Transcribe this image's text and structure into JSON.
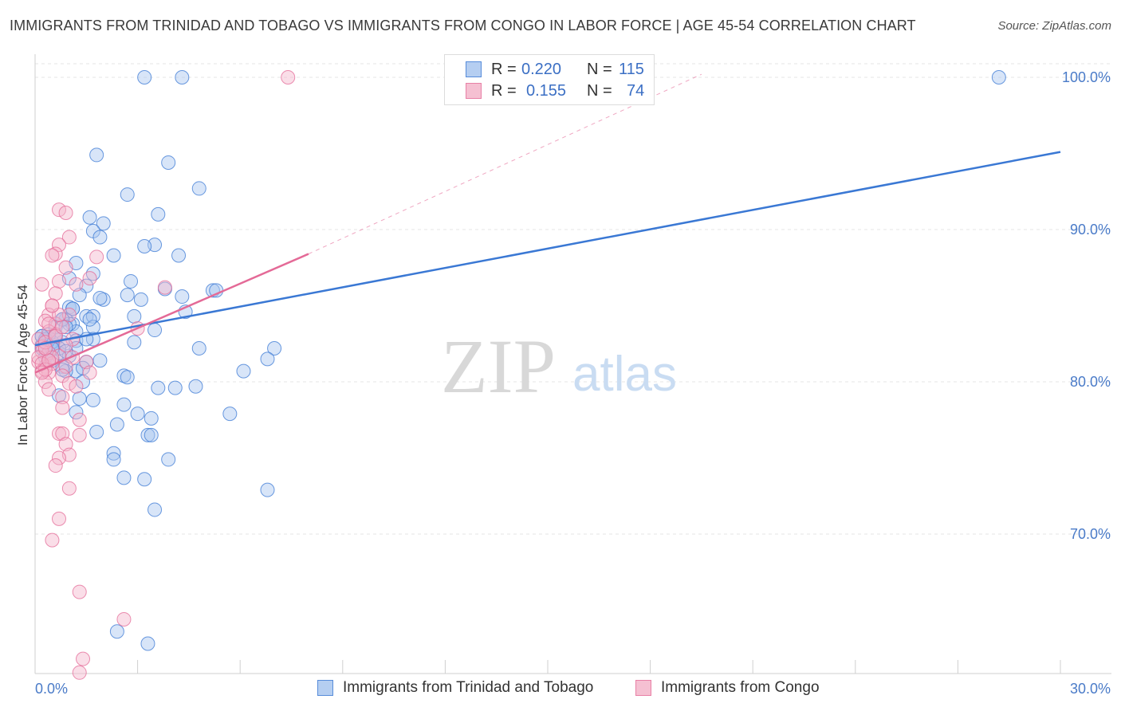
{
  "title": "IMMIGRANTS FROM TRINIDAD AND TOBAGO VS IMMIGRANTS FROM CONGO IN LABOR FORCE | AGE 45-54 CORRELATION CHART",
  "source": "Source: ZipAtlas.com",
  "colors": {
    "blue": "#3a78d4",
    "blue_fill": "#a9c6ef",
    "pink": "#e46a97",
    "pink_fill": "#f4b6cb",
    "grid": "#e6e6e6",
    "tick_label": "#4a7bc8"
  },
  "legend": {
    "rows": [
      {
        "r_label": "R =",
        "r_value": "0.220",
        "n_label": "N =",
        "n_value": "115"
      },
      {
        "r_label": "R =",
        "r_value": "0.155",
        "n_label": "N =",
        "n_value": "74"
      }
    ]
  },
  "bottom_legend": {
    "series_a": "Immigrants from Trinidad and Tobago",
    "series_b": "Immigrants from Congo"
  },
  "watermark": {
    "zip": "ZIP",
    "atlas": "atlas"
  },
  "chart_data": {
    "type": "scatter",
    "title": "IMMIGRANTS FROM TRINIDAD AND TOBAGO VS IMMIGRANTS FROM CONGO IN LABOR FORCE | AGE 45-54 CORRELATION CHART",
    "xlabel": "",
    "ylabel": "In Labor Force | Age 45-54",
    "xlim": [
      0,
      30
    ],
    "ylim": [
      60,
      101.5
    ],
    "x_tick_labels": {
      "min": "0.0%",
      "max": "30.0%"
    },
    "y_ticks": [
      70,
      80,
      90,
      100
    ],
    "y_tick_labels": [
      "70.0%",
      "80.0%",
      "90.0%",
      "100.0%"
    ],
    "grid": true,
    "series": [
      {
        "name": "Immigrants from Trinidad and Tobago",
        "color": "#3a78d4",
        "r": 0.22,
        "n": 115,
        "trend": {
          "x0": 0,
          "y0": 82.4,
          "x1": 30,
          "y1": 95.1
        },
        "points": [
          [
            3.2,
            100
          ],
          [
            4.3,
            100
          ],
          [
            28.2,
            100
          ],
          [
            1.8,
            94.9
          ],
          [
            3.9,
            94.4
          ],
          [
            4.8,
            92.7
          ],
          [
            2.7,
            92.3
          ],
          [
            3.6,
            91.0
          ],
          [
            1.6,
            90.8
          ],
          [
            2.0,
            90.4
          ],
          [
            1.7,
            89.9
          ],
          [
            1.9,
            89.5
          ],
          [
            3.5,
            89.0
          ],
          [
            3.2,
            88.9
          ],
          [
            2.3,
            88.3
          ],
          [
            4.2,
            88.3
          ],
          [
            1.2,
            87.8
          ],
          [
            1.7,
            87.1
          ],
          [
            1.0,
            86.8
          ],
          [
            2.8,
            86.6
          ],
          [
            1.5,
            86.3
          ],
          [
            3.8,
            86.1
          ],
          [
            5.2,
            86.0
          ],
          [
            5.3,
            86.0
          ],
          [
            2.7,
            85.7
          ],
          [
            1.3,
            85.7
          ],
          [
            2.0,
            85.4
          ],
          [
            3.1,
            85.4
          ],
          [
            4.3,
            85.6
          ],
          [
            1.9,
            85.5
          ],
          [
            1.0,
            84.9
          ],
          [
            1.1,
            84.8
          ],
          [
            1.5,
            84.3
          ],
          [
            1.7,
            84.3
          ],
          [
            2.9,
            84.3
          ],
          [
            0.9,
            84.1
          ],
          [
            0.8,
            84.1
          ],
          [
            1.1,
            83.8
          ],
          [
            1.7,
            83.6
          ],
          [
            3.5,
            83.4
          ],
          [
            4.4,
            84.6
          ],
          [
            1.2,
            83.3
          ],
          [
            0.2,
            83.0
          ],
          [
            0.4,
            82.9
          ],
          [
            0.6,
            82.8
          ],
          [
            0.3,
            82.7
          ],
          [
            0.5,
            82.4
          ],
          [
            0.8,
            82.6
          ],
          [
            1.2,
            82.7
          ],
          [
            1.7,
            82.8
          ],
          [
            2.9,
            82.6
          ],
          [
            0.2,
            82.2
          ],
          [
            0.4,
            81.9
          ],
          [
            0.7,
            81.9
          ],
          [
            1.0,
            81.7
          ],
          [
            4.8,
            82.2
          ],
          [
            7.0,
            82.2
          ],
          [
            0.3,
            81.6
          ],
          [
            0.5,
            81.4
          ],
          [
            1.5,
            81.3
          ],
          [
            1.9,
            81.4
          ],
          [
            6.8,
            81.5
          ],
          [
            0.8,
            81.0
          ],
          [
            1.2,
            80.7
          ],
          [
            0.9,
            80.7
          ],
          [
            1.4,
            80.0
          ],
          [
            2.6,
            80.4
          ],
          [
            2.7,
            80.3
          ],
          [
            6.1,
            80.7
          ],
          [
            3.6,
            79.6
          ],
          [
            4.1,
            79.6
          ],
          [
            4.7,
            79.7
          ],
          [
            0.7,
            79.1
          ],
          [
            1.3,
            78.9
          ],
          [
            1.7,
            78.8
          ],
          [
            2.6,
            78.5
          ],
          [
            3.0,
            77.9
          ],
          [
            1.2,
            78.0
          ],
          [
            3.4,
            77.6
          ],
          [
            5.7,
            77.9
          ],
          [
            2.4,
            77.2
          ],
          [
            1.8,
            76.7
          ],
          [
            3.3,
            76.5
          ],
          [
            3.4,
            76.5
          ],
          [
            2.3,
            75.3
          ],
          [
            2.3,
            74.9
          ],
          [
            3.9,
            74.9
          ],
          [
            2.6,
            73.7
          ],
          [
            3.2,
            73.6
          ],
          [
            6.8,
            72.9
          ],
          [
            3.5,
            71.6
          ],
          [
            2.4,
            63.6
          ],
          [
            3.3,
            62.8
          ],
          [
            1.0,
            83.8
          ],
          [
            0.5,
            82.6
          ],
          [
            0.7,
            82.2
          ],
          [
            0.4,
            83.1
          ],
          [
            1.2,
            82.2
          ],
          [
            0.3,
            82.2
          ],
          [
            0.6,
            83.6
          ],
          [
            0.2,
            82.4
          ],
          [
            0.3,
            82.8
          ],
          [
            0.6,
            83.0
          ],
          [
            0.9,
            82.0
          ],
          [
            1.4,
            80.9
          ],
          [
            0.8,
            84.1
          ],
          [
            1.1,
            84.8
          ],
          [
            0.4,
            81.9
          ],
          [
            0.8,
            80.8
          ],
          [
            1.5,
            82.8
          ],
          [
            0.2,
            83.0
          ],
          [
            0.5,
            82.2
          ],
          [
            0.9,
            83.6
          ],
          [
            1.6,
            84.1
          ],
          [
            0.4,
            81.4
          ]
        ]
      },
      {
        "name": "Immigrants from Congo",
        "color": "#e46a97",
        "r": 0.155,
        "n": 74,
        "trend": {
          "x0": 0,
          "y0": 80.6,
          "x1": 8.0,
          "y1": 88.4
        },
        "trend_ext": {
          "x0": 8.0,
          "y0": 88.4,
          "x1": 19.5,
          "y1": 100.2
        },
        "points": [
          [
            7.4,
            100
          ],
          [
            0.7,
            91.3
          ],
          [
            0.9,
            91.1
          ],
          [
            1.0,
            89.5
          ],
          [
            0.7,
            89.0
          ],
          [
            0.6,
            88.4
          ],
          [
            0.5,
            88.3
          ],
          [
            1.8,
            88.2
          ],
          [
            0.9,
            87.5
          ],
          [
            0.7,
            86.6
          ],
          [
            0.2,
            86.4
          ],
          [
            0.6,
            85.8
          ],
          [
            1.2,
            86.4
          ],
          [
            3.8,
            86.2
          ],
          [
            0.5,
            85.0
          ],
          [
            0.4,
            84.4
          ],
          [
            1.0,
            84.4
          ],
          [
            0.3,
            84.0
          ],
          [
            0.6,
            83.8
          ],
          [
            3.0,
            83.5
          ],
          [
            0.4,
            83.3
          ],
          [
            0.6,
            83.1
          ],
          [
            0.1,
            82.8
          ],
          [
            0.2,
            82.3
          ],
          [
            0.4,
            81.9
          ],
          [
            0.7,
            81.7
          ],
          [
            1.1,
            81.6
          ],
          [
            0.1,
            81.3
          ],
          [
            0.3,
            81.0
          ],
          [
            0.5,
            81.2
          ],
          [
            0.9,
            81.0
          ],
          [
            1.5,
            81.3
          ],
          [
            0.2,
            80.7
          ],
          [
            0.4,
            80.6
          ],
          [
            0.8,
            80.4
          ],
          [
            1.6,
            80.6
          ],
          [
            0.3,
            80.0
          ],
          [
            1.0,
            79.9
          ],
          [
            0.4,
            79.5
          ],
          [
            1.2,
            79.7
          ],
          [
            0.8,
            79.0
          ],
          [
            0.8,
            78.3
          ],
          [
            1.3,
            77.5
          ],
          [
            0.7,
            76.6
          ],
          [
            0.8,
            76.6
          ],
          [
            1.3,
            76.5
          ],
          [
            0.9,
            75.9
          ],
          [
            1.0,
            75.2
          ],
          [
            0.7,
            75.0
          ],
          [
            0.6,
            74.5
          ],
          [
            1.0,
            73.0
          ],
          [
            0.7,
            71.0
          ],
          [
            0.5,
            69.6
          ],
          [
            1.3,
            66.2
          ],
          [
            2.6,
            64.4
          ],
          [
            1.4,
            61.8
          ],
          [
            1.3,
            60.9
          ],
          [
            0.2,
            82.0
          ],
          [
            0.3,
            82.6
          ],
          [
            0.1,
            81.6
          ],
          [
            0.5,
            81.6
          ],
          [
            0.2,
            81.2
          ],
          [
            0.3,
            80.8
          ],
          [
            0.6,
            83.0
          ],
          [
            0.8,
            83.6
          ],
          [
            1.1,
            82.8
          ],
          [
            0.4,
            81.4
          ],
          [
            0.2,
            80.6
          ],
          [
            0.7,
            84.4
          ],
          [
            0.5,
            85.0
          ],
          [
            1.6,
            86.8
          ],
          [
            0.4,
            83.8
          ],
          [
            0.9,
            82.4
          ],
          [
            0.3,
            82.2
          ]
        ]
      }
    ]
  }
}
